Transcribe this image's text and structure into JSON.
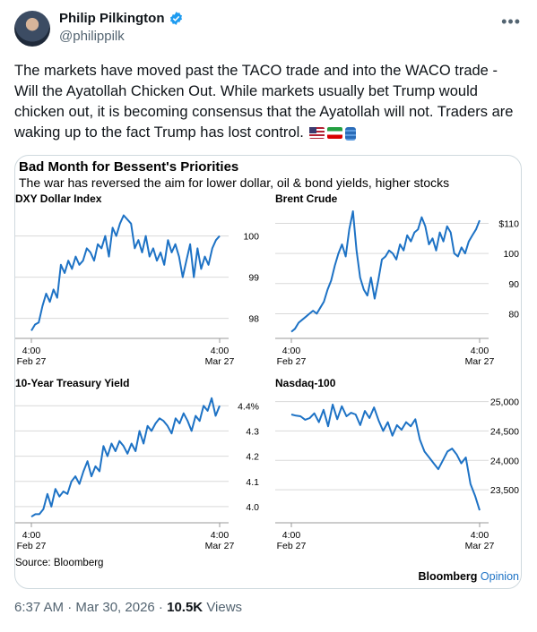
{
  "author": {
    "name": "Philip Pilkington",
    "handle": "@philippilk",
    "verified_icon": "verified-badge-icon"
  },
  "menu_icon": "more-options-icon",
  "tweet": {
    "text": "The markets have moved past the TACO trade and into the WACO trade - Will the Ayatollah Chicken Out. While markets usually bet Trump would chicken out, it is becoming consensus that the Ayatollah will not. Traders are waking up to the fact Trump has lost control.",
    "emojis": [
      "us-flag-icon",
      "iran-flag-icon",
      "oil-barrel-icon"
    ]
  },
  "figure": {
    "title": "Bad Month for Bessent's Priorities",
    "subtitle": "The war has reversed the aim for lower dollar, oil & bond yields, higher stocks",
    "source": "Source: Bloomberg",
    "brand": "Bloomberg",
    "brand_suffix": "Opinion",
    "line_color": "#1d72c5"
  },
  "chart_data": [
    {
      "type": "line",
      "title": "DXY Dollar Index",
      "x_ticks": [
        [
          "4:00",
          "Feb 27"
        ],
        [
          "4:00",
          "Mar 27"
        ]
      ],
      "y_ticks": [
        "98",
        "99",
        "100"
      ],
      "ylim": [
        97.6,
        100.6
      ],
      "values": [
        97.7,
        97.85,
        97.9,
        98.3,
        98.6,
        98.4,
        98.7,
        98.5,
        99.3,
        99.1,
        99.4,
        99.2,
        99.5,
        99.3,
        99.4,
        99.7,
        99.6,
        99.4,
        99.8,
        99.7,
        100.0,
        99.5,
        100.2,
        100.0,
        100.3,
        100.5,
        100.4,
        100.3,
        99.7,
        99.9,
        99.6,
        100.0,
        99.5,
        99.7,
        99.4,
        99.6,
        99.3,
        99.9,
        99.6,
        99.8,
        99.5,
        99.0,
        99.4,
        99.8,
        99.0,
        99.7,
        99.2,
        99.5,
        99.3,
        99.7,
        99.9,
        100.0
      ]
    },
    {
      "type": "line",
      "title": "Brent Crude",
      "x_ticks": [
        [
          "4:00",
          "Feb 27"
        ],
        [
          "4:00",
          "Mar 27"
        ]
      ],
      "y_ticks": [
        "80",
        "90",
        "100",
        "$110"
      ],
      "ylim": [
        73,
        114
      ],
      "values": [
        74,
        75,
        77,
        78,
        79,
        80,
        81,
        80,
        82,
        84,
        88,
        91,
        96,
        100,
        103,
        99,
        108,
        114,
        101,
        92,
        88,
        86,
        92,
        85,
        91,
        98,
        99,
        101,
        100,
        98,
        103,
        101,
        106,
        104,
        107,
        108,
        112,
        109,
        103,
        105,
        101,
        107,
        104,
        109,
        107,
        100,
        99,
        102,
        100,
        104,
        106,
        108,
        111
      ]
    },
    {
      "type": "line",
      "title": "10-Year Treasury Yield",
      "x_ticks": [
        [
          "4:00",
          "Feb 27"
        ],
        [
          "4:00",
          "Mar 27"
        ]
      ],
      "y_ticks": [
        "4.0",
        "4.1",
        "4.2",
        "4.3",
        "4.4%"
      ],
      "ylim": [
        3.95,
        4.44
      ],
      "values": [
        3.96,
        3.97,
        3.97,
        3.99,
        4.05,
        4.0,
        4.07,
        4.04,
        4.06,
        4.05,
        4.1,
        4.12,
        4.09,
        4.14,
        4.18,
        4.12,
        4.16,
        4.14,
        4.24,
        4.2,
        4.25,
        4.22,
        4.26,
        4.24,
        4.21,
        4.25,
        4.22,
        4.3,
        4.25,
        4.32,
        4.3,
        4.33,
        4.35,
        4.34,
        4.32,
        4.29,
        4.35,
        4.33,
        4.37,
        4.34,
        4.3,
        4.36,
        4.34,
        4.4,
        4.38,
        4.43,
        4.36,
        4.4
      ]
    },
    {
      "type": "line",
      "title": "Nasdaq-100",
      "x_ticks": [
        [
          "4:00",
          "Feb 27"
        ],
        [
          "4:00",
          "Mar 27"
        ]
      ],
      "y_ticks": [
        "23,500",
        "24,000",
        "24,500",
        "25,000"
      ],
      "ylim": [
        23000,
        25100
      ],
      "values": [
        24780,
        24760,
        24750,
        24690,
        24720,
        24800,
        24650,
        24860,
        24580,
        24950,
        24700,
        24920,
        24750,
        24810,
        24780,
        24600,
        24840,
        24720,
        24900,
        24680,
        24500,
        24650,
        24420,
        24600,
        24520,
        24650,
        24580,
        24700,
        24350,
        24150,
        24050,
        23950,
        23850,
        24000,
        24150,
        24200,
        24100,
        23950,
        24050,
        23600,
        23400,
        23150
      ]
    }
  ]
}
